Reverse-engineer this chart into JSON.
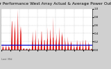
{
  "title": "Solar PV/Inverter Performance West Array Actual & Average Power Output",
  "subtitle": "Last 30d",
  "bg_color": "#d0d0d0",
  "plot_bg_color": "#ffffff",
  "bar_color": "#dd0000",
  "avg_line_color": "#0000cc",
  "avg_value": 0.12,
  "y_max": 1.0,
  "y_ticks": [
    0.0,
    0.2,
    0.4,
    0.6,
    0.8,
    1.0
  ],
  "n_points": 400,
  "title_fontsize": 4.2,
  "tick_fontsize": 2.8,
  "label_fontsize": 2.5
}
